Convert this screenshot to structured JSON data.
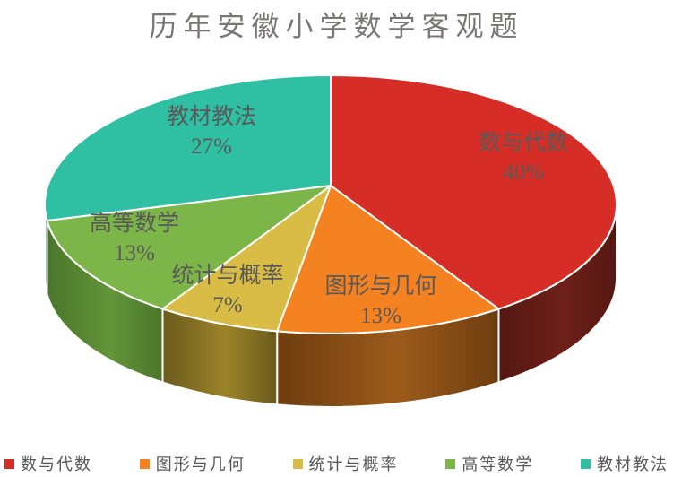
{
  "chart_data": {
    "type": "pie",
    "projection": "3d",
    "title": "历年安徽小学数学客观题",
    "start_angle_deg": 0,
    "direction": "clockwise",
    "legend_position": "bottom",
    "value_suffix": "%",
    "label_color": "#595959",
    "title_color": "#7b7676",
    "series": [
      {
        "label": "数与代数",
        "value": 40,
        "color": "#d62e26",
        "side_mid": "#6e2018",
        "side_edge": "#551712"
      },
      {
        "label": "图形与几何",
        "value": 13,
        "color": "#f58220",
        "side_mid": "#9c5b1b",
        "side_edge": "#6e3d0f"
      },
      {
        "label": "统计与概率",
        "value": 7,
        "color": "#d9bc45",
        "side_mid": "#9c8329",
        "side_edge": "#6a5a1c"
      },
      {
        "label": "高等数学",
        "value": 13,
        "color": "#7cb648",
        "side_mid": "#63953a",
        "side_edge": "#4a762a"
      },
      {
        "label": "教材教法",
        "value": 27,
        "color": "#2fbfa3",
        "side_mid": "#25997f",
        "side_edge": "#1e8573"
      }
    ]
  }
}
